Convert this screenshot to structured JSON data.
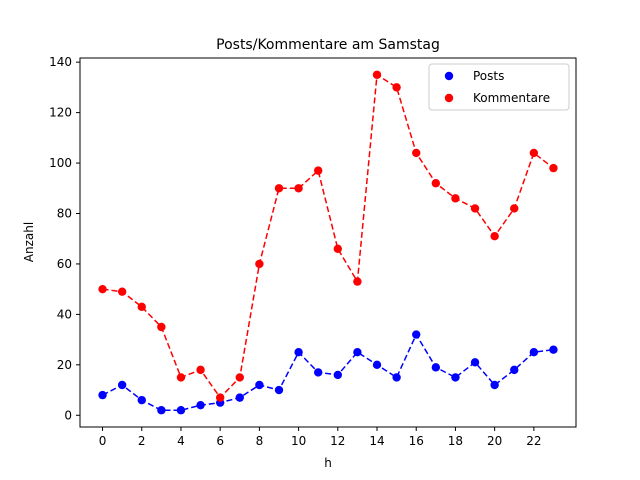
{
  "chart_data": {
    "type": "line",
    "title": "Posts/Kommentare am Samstag",
    "xlabel": "h",
    "ylabel": "Anzahl",
    "xlim": [
      -1.15,
      24.15
    ],
    "ylim": [
      -4.65,
      141.65
    ],
    "xticks": [
      0,
      2,
      4,
      6,
      8,
      10,
      12,
      14,
      16,
      18,
      20,
      22
    ],
    "yticks": [
      0,
      20,
      40,
      60,
      80,
      100,
      120,
      140
    ],
    "x": [
      0,
      1,
      2,
      3,
      4,
      5,
      6,
      7,
      8,
      9,
      10,
      11,
      12,
      13,
      14,
      15,
      16,
      17,
      18,
      19,
      20,
      21,
      22,
      23
    ],
    "grid": false,
    "legend_position": "top-right",
    "series": [
      {
        "name": "Posts",
        "color": "#0000ff",
        "linestyle": "dashed",
        "marker": "circle",
        "values": [
          8,
          12,
          6,
          2,
          2,
          4,
          5,
          7,
          12,
          10,
          25,
          17,
          16,
          25,
          20,
          15,
          32,
          19,
          15,
          21,
          12,
          18,
          25,
          26
        ]
      },
      {
        "name": "Kommentare",
        "color": "#ff0000",
        "linestyle": "dashed",
        "marker": "circle",
        "values": [
          50,
          49,
          43,
          35,
          15,
          18,
          7,
          15,
          60,
          90,
          90,
          97,
          66,
          53,
          135,
          130,
          104,
          92,
          86,
          82,
          71,
          82,
          104,
          98
        ]
      }
    ]
  }
}
